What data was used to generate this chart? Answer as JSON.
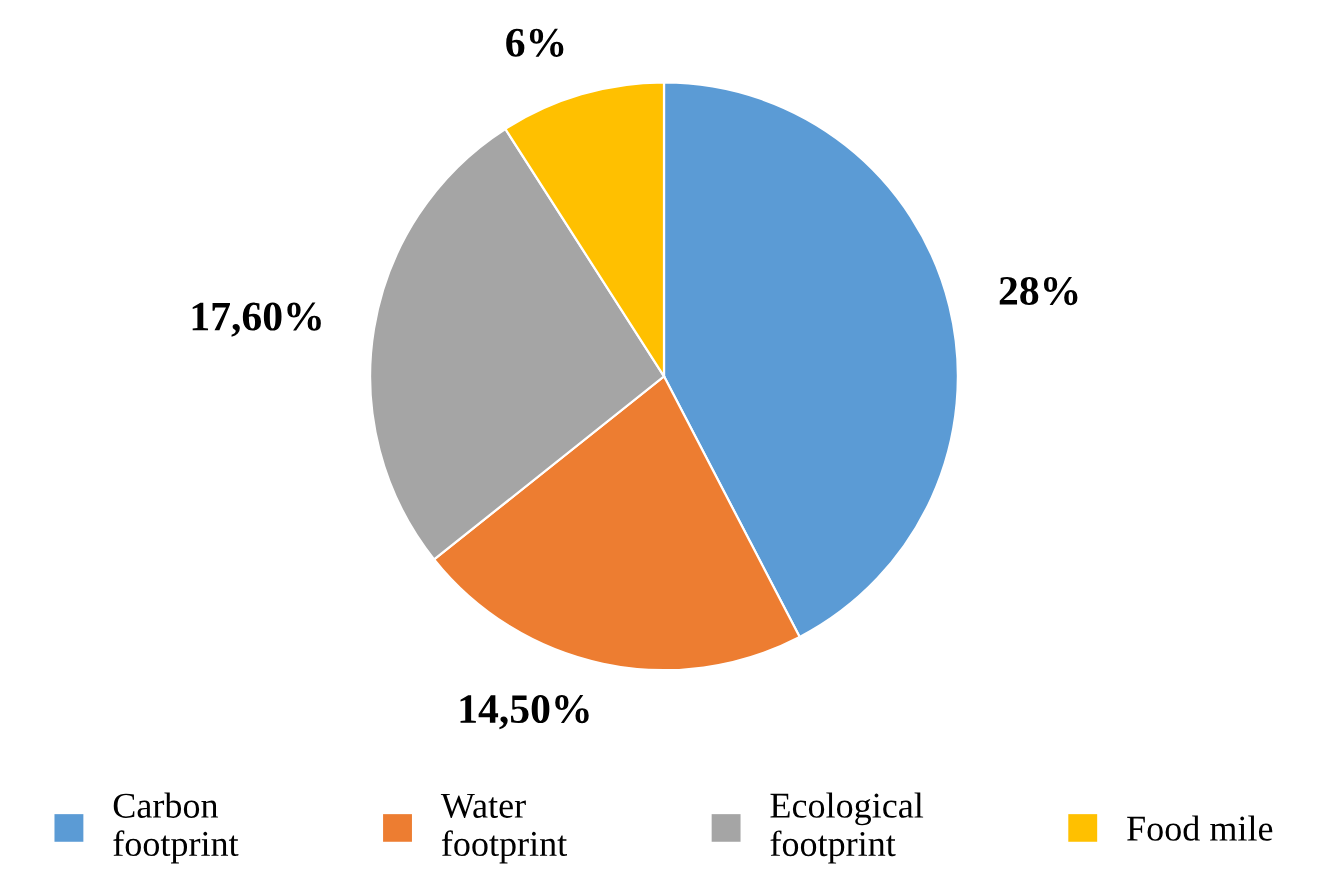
{
  "chart_data": {
    "type": "pie",
    "categories": [
      "Carbon\nfootprint",
      "Water\nfootprint",
      "Ecological\nfootprint",
      "Food mile"
    ],
    "values": [
      28,
      14.5,
      17.6,
      6
    ],
    "value_labels": [
      "28%",
      "14,50%",
      "17,60%",
      "6%"
    ],
    "colors": [
      "#5b9bd5",
      "#ed7d31",
      "#a5a5a5",
      "#ffc000"
    ],
    "legend": "bottom"
  }
}
